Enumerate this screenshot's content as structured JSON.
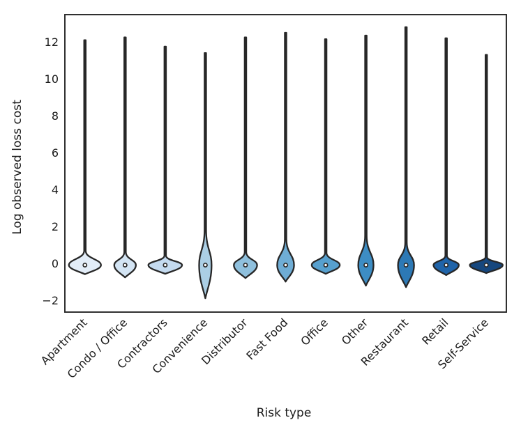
{
  "figure": {
    "background": "#ffffff",
    "axis_color": "#262626",
    "violin_edge_color": "#272727",
    "median_dot_color": "#ffffff"
  },
  "chart_data": {
    "type": "violin",
    "title": "",
    "xlabel": "Risk type",
    "ylabel": "Log observed loss cost",
    "ylim": [
      -2.62,
      13.48
    ],
    "yticks": [
      -2,
      0,
      2,
      4,
      6,
      8,
      10,
      12
    ],
    "grid": false,
    "legend": "none",
    "categories": [
      "Apartment",
      "Condo / Office",
      "Contractors",
      "Convenience",
      "Distributor",
      "Fast Food",
      "Office",
      "Other",
      "Restaurant",
      "Retail",
      "Self-Service"
    ],
    "series": [
      {
        "label": "Apartment",
        "color": "#e3edf8",
        "max": 12.1,
        "shoulder": 0.7,
        "median": 0,
        "min": -0.57,
        "width": 0.8
      },
      {
        "label": "Condo / Office",
        "color": "#d3e4f3",
        "max": 12.25,
        "shoulder": 0.63,
        "median": 0,
        "min": -0.74,
        "width": 0.54
      },
      {
        "label": "Contractors",
        "color": "#c4daef",
        "max": 11.75,
        "shoulder": 0.44,
        "median": 0,
        "min": -0.55,
        "width": 0.84
      },
      {
        "label": "Convenience",
        "color": "#abcfe5",
        "max": 11.4,
        "shoulder": 1.85,
        "median": 0,
        "min": -1.87,
        "width": 0.31
      },
      {
        "label": "Distributor",
        "color": "#8fc0dd",
        "max": 12.25,
        "shoulder": 0.63,
        "median": 0,
        "min": -0.78,
        "width": 0.58
      },
      {
        "label": "Fast Food",
        "color": "#6fadd5",
        "max": 12.5,
        "shoulder": 1.34,
        "median": 0,
        "min": -0.97,
        "width": 0.42
      },
      {
        "label": "Office",
        "color": "#57a0ce",
        "max": 12.15,
        "shoulder": 0.59,
        "median": 0,
        "min": -0.55,
        "width": 0.7
      },
      {
        "label": "Other",
        "color": "#3d8dc4",
        "max": 12.35,
        "shoulder": 1.53,
        "median": 0,
        "min": -1.19,
        "width": 0.38
      },
      {
        "label": "Restaurant",
        "color": "#2d79b5",
        "max": 12.8,
        "shoulder": 1.16,
        "median": 0,
        "min": -1.27,
        "width": 0.4
      },
      {
        "label": "Retail",
        "color": "#2064a9",
        "max": 12.2,
        "shoulder": 0.44,
        "median": 0,
        "min": -0.62,
        "width": 0.63
      },
      {
        "label": "Self-Service",
        "color": "#16477e",
        "max": 11.3,
        "shoulder": 0.36,
        "median": 0,
        "min": -0.51,
        "width": 0.82
      }
    ]
  }
}
